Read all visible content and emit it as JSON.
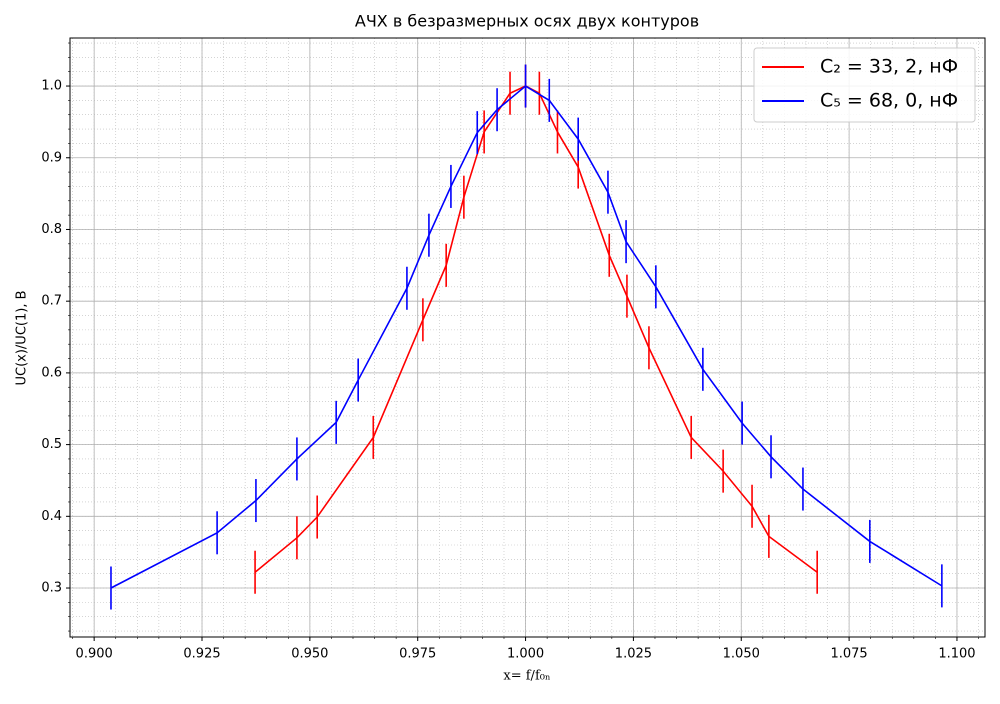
{
  "chart_data": {
    "type": "line",
    "title": "АЧХ в безразмерных осях двух контуров",
    "x_label": "x= f/f₀ₙ",
    "y_label": "UC(x)/UC(1), В",
    "xlim": [
      0.8944,
      1.1065
    ],
    "ylim": [
      0.2317,
      1.067
    ],
    "xticks": [
      {
        "value": 0.9,
        "label": "0.900"
      },
      {
        "value": 0.925,
        "label": "0.925"
      },
      {
        "value": 0.95,
        "label": "0.950"
      },
      {
        "value": 0.975,
        "label": "0.975"
      },
      {
        "value": 1.0,
        "label": "1.000"
      },
      {
        "value": 1.025,
        "label": "1.025"
      },
      {
        "value": 1.05,
        "label": "1.050"
      },
      {
        "value": 1.075,
        "label": "1.075"
      },
      {
        "value": 1.1,
        "label": "1.100"
      }
    ],
    "yticks": [
      0.3,
      0.4,
      0.5,
      0.6,
      0.7,
      0.8,
      0.9,
      {
        "value": 1.0,
        "label": "1.0"
      }
    ],
    "grid": true,
    "minor_grid": true,
    "legend": "upper right",
    "series": [
      {
        "name": "C₂ = 33, 2, нФ",
        "color": "#ff0000",
        "yerr": 0.03,
        "x": [
          0.9373,
          0.947,
          0.9517,
          0.9647,
          0.9762,
          0.9816,
          0.9857,
          0.9904,
          0.9964,
          1.0,
          1.0032,
          1.0074,
          1.0122,
          1.0194,
          1.0235,
          1.0286,
          1.0384,
          1.0458,
          1.0525,
          1.0564,
          1.0676
        ],
        "values": [
          0.322,
          0.37,
          0.399,
          0.51,
          0.674,
          0.75,
          0.845,
          0.936,
          0.99,
          1.0,
          0.99,
          0.936,
          0.887,
          0.764,
          0.707,
          0.635,
          0.51,
          0.463,
          0.414,
          0.372,
          0.322
        ]
      },
      {
        "name": "C₅ = 68, 0, нФ",
        "color": "#0000ff",
        "yerr": 0.03,
        "x": [
          0.9039,
          0.9285,
          0.9375,
          0.947,
          0.9561,
          0.9612,
          0.9725,
          0.9776,
          0.9827,
          0.9888,
          0.9934,
          1.0,
          1.0055,
          1.0122,
          1.0191,
          1.0233,
          1.0302,
          1.0411,
          1.0502,
          1.0569,
          1.0643,
          1.0798,
          1.0965
        ],
        "values": [
          0.3,
          0.377,
          0.422,
          0.48,
          0.531,
          0.59,
          0.718,
          0.792,
          0.86,
          0.935,
          0.967,
          1.0,
          0.98,
          0.926,
          0.852,
          0.783,
          0.72,
          0.605,
          0.53,
          0.483,
          0.438,
          0.365,
          0.303
        ]
      }
    ]
  }
}
